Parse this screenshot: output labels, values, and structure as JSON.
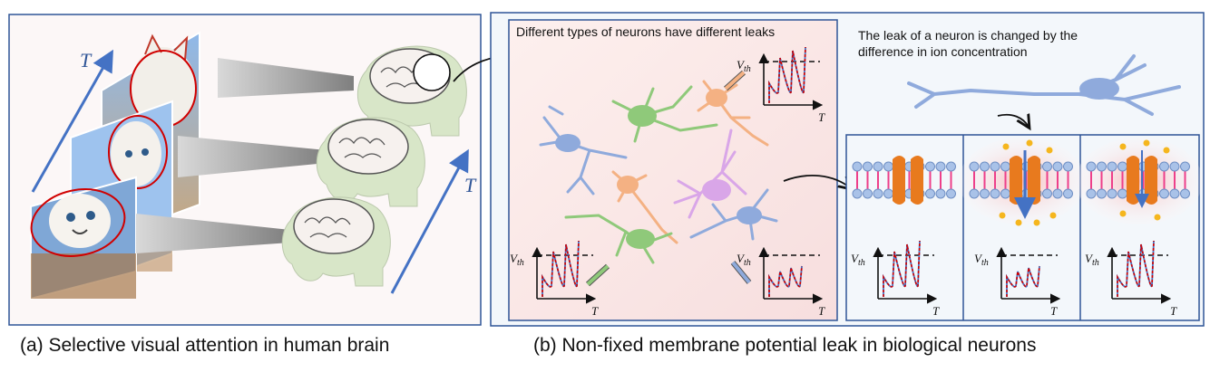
{
  "panel_a": {
    "caption": "(a) Selective visual attention in human brain",
    "time_label_left": "T",
    "time_label_right": "T"
  },
  "panel_b": {
    "caption": "(b) Non-fixed membrane potential leak in biological neurons",
    "neurons_note": "Different types of neurons have different leaks",
    "ion_note_line1": "The leak of a neuron is changed by the",
    "ion_note_line2": "difference in ion concentration",
    "vth_label": "V",
    "vth_sub": "th",
    "time_axis_label": "T"
  },
  "colors": {
    "frame_blue": "#2f5597",
    "arrow_blue": "#4472c4",
    "spike_red": "#d00000",
    "neuron_blue": "#8faadc",
    "neuron_green": "#8fc97a",
    "neuron_orange": "#f4b183",
    "neuron_purple": "#d9a6e8",
    "channel_orange": "#e87a1e",
    "ion_yellow": "#f5b61e",
    "membrane_pink": "#ee3f8a"
  }
}
